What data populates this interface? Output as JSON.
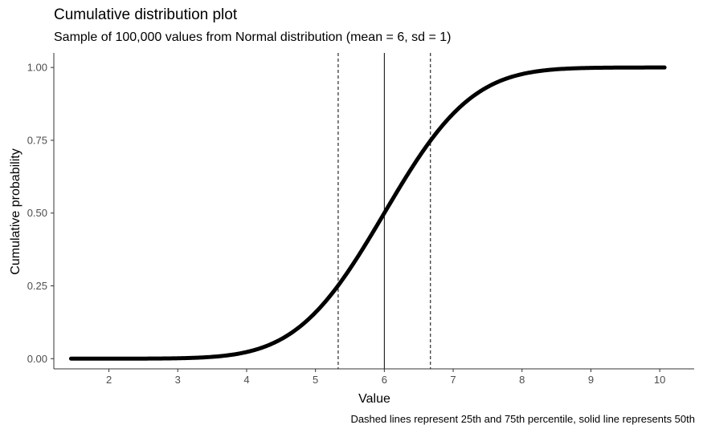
{
  "chart_data": {
    "type": "line",
    "title": "Cumulative distribution plot",
    "subtitle": "Sample of 100,000 values from Normal distribution (mean = 6, sd = 1)",
    "caption": "Dashed lines represent 25th and 75th percentile, solid line represents 50th",
    "xlabel": "Value",
    "ylabel": "Cumulative probability",
    "xlim": [
      1.2,
      10.5
    ],
    "ylim": [
      -0.035,
      1.05
    ],
    "x_ticks": [
      2,
      3,
      4,
      5,
      6,
      7,
      8,
      9,
      10
    ],
    "y_ticks": [
      0.0,
      0.25,
      0.5,
      0.75,
      1.0
    ],
    "y_tick_labels": [
      "0.00",
      "0.25",
      "0.50",
      "0.75",
      "1.00"
    ],
    "distribution": {
      "mean": 6,
      "sd": 1,
      "x_min": 1.45,
      "x_max": 10.07
    },
    "reference_lines": [
      {
        "x": 5.33,
        "style": "dashed",
        "label": "25th percentile"
      },
      {
        "x": 6.0,
        "style": "solid",
        "label": "50th percentile"
      },
      {
        "x": 6.67,
        "style": "dashed",
        "label": "75th percentile"
      }
    ],
    "grid": false,
    "line_color": "#000000",
    "axis_color": "#333333"
  }
}
